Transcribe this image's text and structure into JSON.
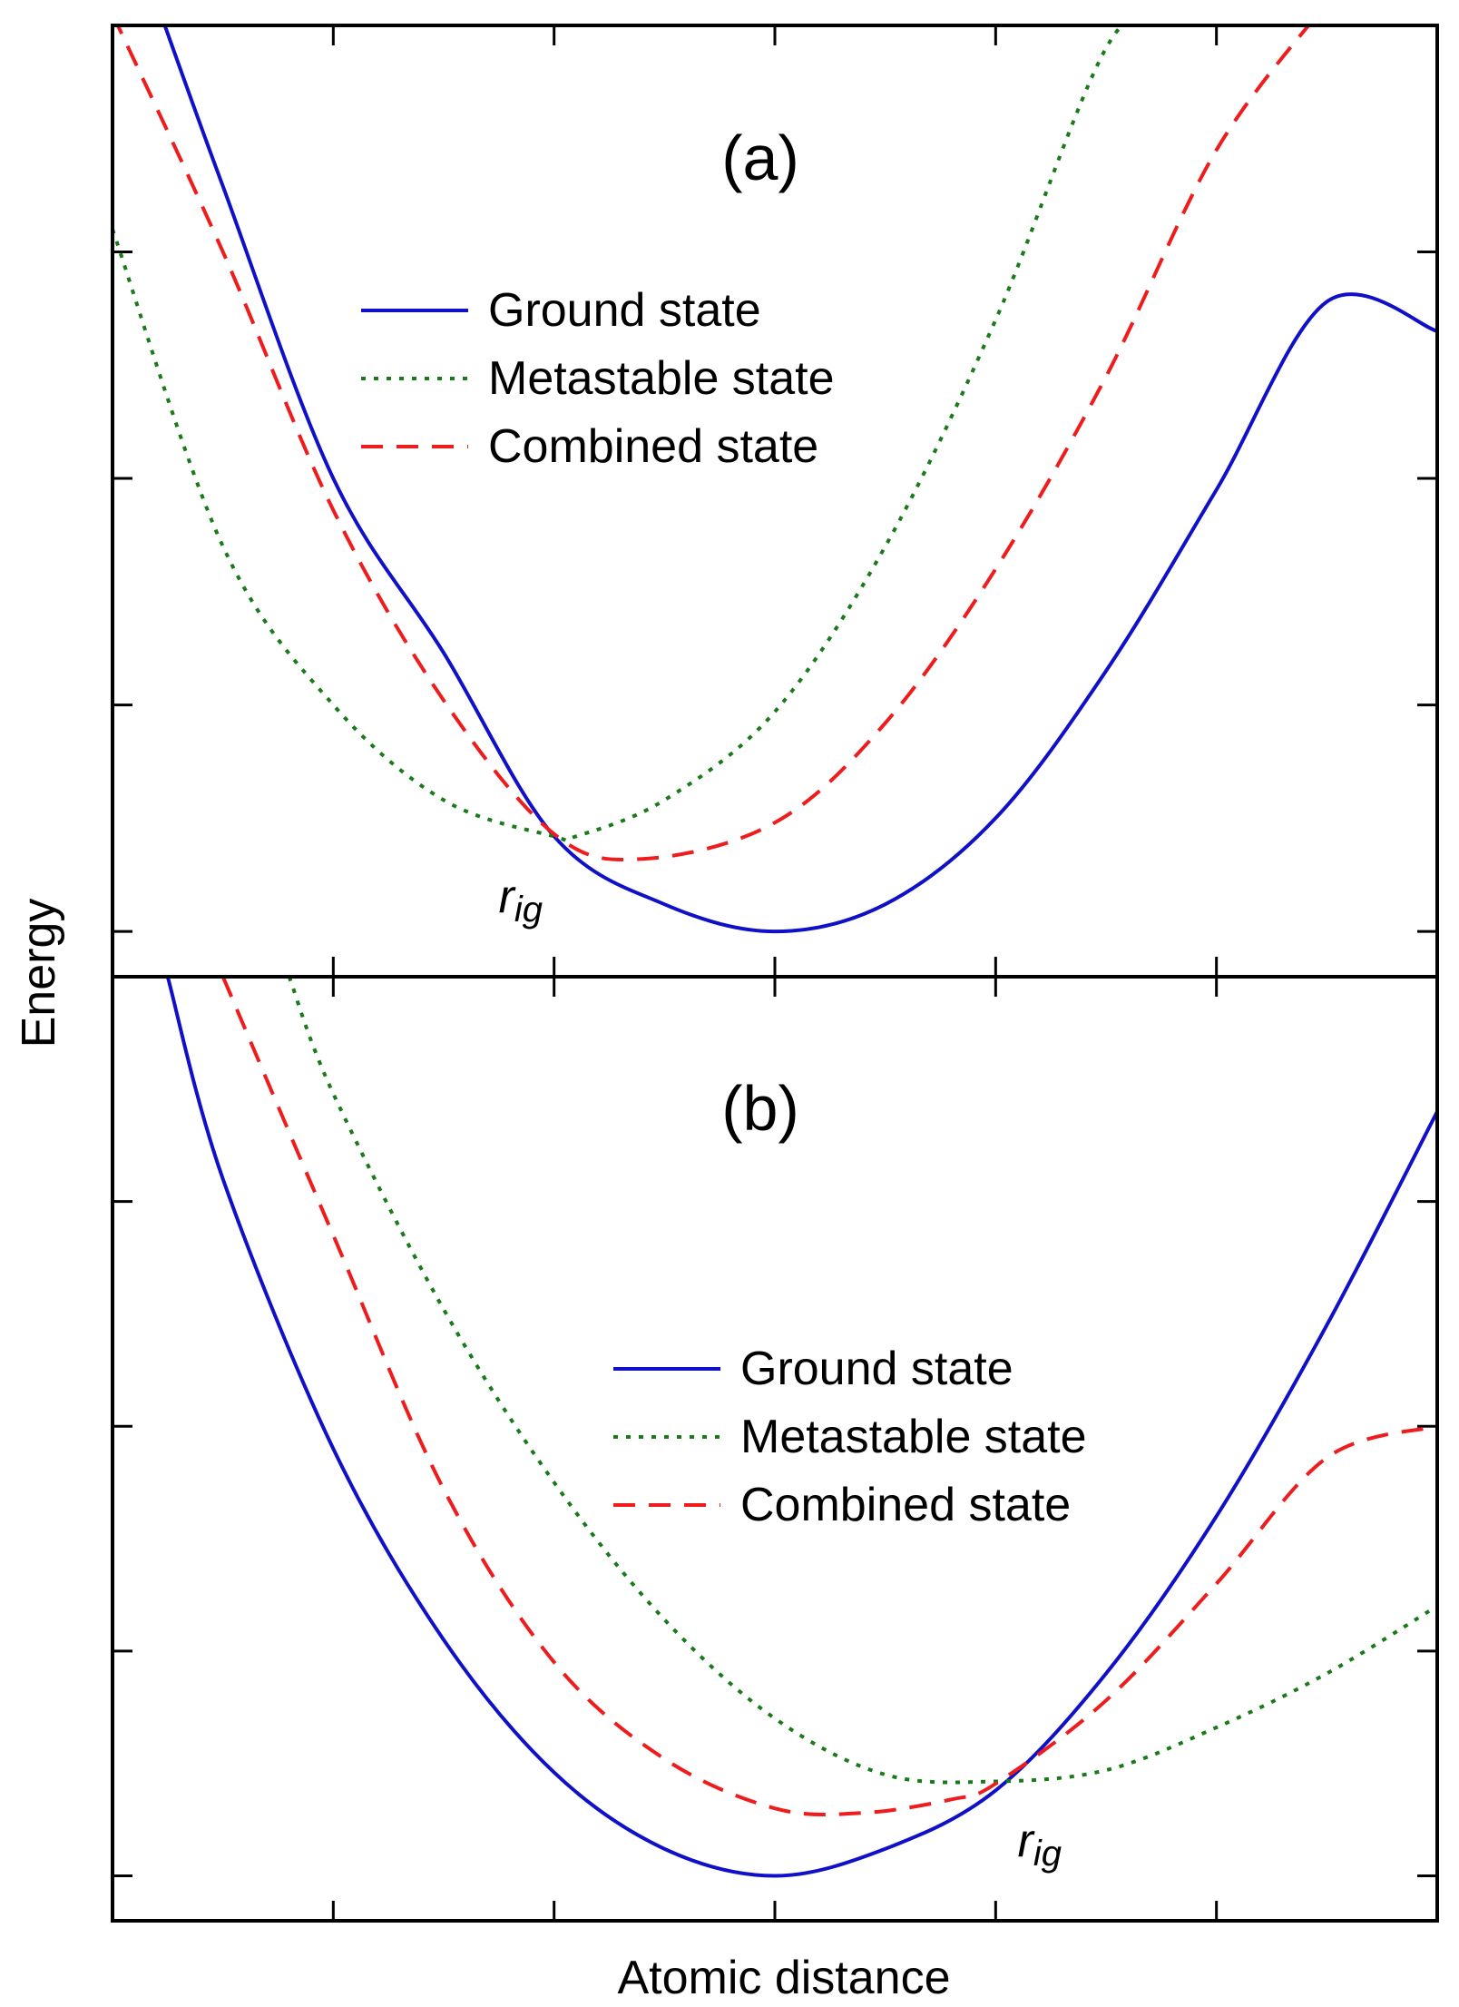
{
  "figure": {
    "xlabel": "Atomic distance",
    "ylabel": "Energy"
  },
  "chart_data": [
    {
      "type": "line",
      "panel_label": "(a)",
      "xlabel": "Atomic distance",
      "ylabel": "Energy",
      "xlim": [
        0,
        6
      ],
      "ylim": [
        -0.2,
        4.0
      ],
      "xticks": [
        1,
        2,
        3,
        4,
        5
      ],
      "yticks": [
        0,
        1,
        2,
        3,
        4
      ],
      "show_tick_labels": false,
      "grid": false,
      "legend_position": "upper-center",
      "crossing_label": {
        "base": "r",
        "sub": "ig",
        "x": 2.0,
        "y": 0.35
      },
      "series": [
        {
          "name": "Ground state",
          "color": "#1010c8",
          "style": "solid",
          "x": [
            0.2,
            0.5,
            1.0,
            1.5,
            2.0,
            2.5,
            3.0,
            3.5,
            4.0,
            4.5,
            5.0,
            5.5,
            6.0
          ],
          "y": [
            4.1,
            3.29,
            2.0,
            1.23,
            0.42,
            0.12,
            0.0,
            0.12,
            0.5,
            1.15,
            1.95,
            2.78,
            2.65
          ]
        },
        {
          "name": "Metastable state",
          "color": "#1a7a1a",
          "style": "dotted",
          "x": [
            0.0,
            0.5,
            1.0,
            1.5,
            2.0,
            2.1,
            2.5,
            3.0,
            3.5,
            4.0,
            4.5,
            4.8
          ],
          "y": [
            3.1,
            1.7,
            1.0,
            0.58,
            0.42,
            0.42,
            0.58,
            0.97,
            1.7,
            2.7,
            3.9,
            4.1
          ]
        },
        {
          "name": "Combined state",
          "color": "#ee1c1c",
          "style": "dashed",
          "x": [
            0.0,
            0.5,
            1.0,
            1.5,
            2.0,
            2.4,
            3.0,
            3.5,
            4.0,
            4.5,
            5.0,
            5.5
          ],
          "y": [
            4.05,
            3.0,
            1.86,
            1.02,
            0.43,
            0.32,
            0.48,
            0.92,
            1.6,
            2.45,
            3.45,
            4.1
          ]
        }
      ]
    },
    {
      "type": "line",
      "panel_label": "(b)",
      "xlabel": "Atomic distance",
      "ylabel": "Energy",
      "xlim": [
        0,
        6
      ],
      "ylim": [
        -0.2,
        4.0
      ],
      "xticks": [
        1,
        2,
        3,
        4,
        5
      ],
      "yticks": [
        0,
        1,
        2,
        3,
        4
      ],
      "show_tick_labels": false,
      "grid": false,
      "legend_position": "middle-right",
      "crossing_label": {
        "base": "r",
        "sub": "ig",
        "x": 4.0,
        "y": 0.18
      },
      "series": [
        {
          "name": "Ground state",
          "color": "#1010c8",
          "style": "solid",
          "x": [
            0.25,
            0.5,
            1.0,
            1.5,
            2.0,
            2.5,
            3.0,
            3.5,
            4.0,
            4.5,
            5.0,
            5.5,
            6.0
          ],
          "y": [
            4.0,
            3.1,
            1.9,
            1.05,
            0.46,
            0.12,
            0.0,
            0.12,
            0.38,
            0.9,
            1.6,
            2.45,
            3.4
          ]
        },
        {
          "name": "Metastable state",
          "color": "#1a7a1a",
          "style": "dotted",
          "x": [
            0.8,
            1.0,
            1.5,
            2.0,
            2.5,
            3.0,
            3.5,
            4.0,
            4.5,
            5.0,
            5.5,
            6.0
          ],
          "y": [
            4.0,
            3.48,
            2.52,
            1.75,
            1.14,
            0.7,
            0.45,
            0.42,
            0.47,
            0.66,
            0.9,
            1.2
          ]
        },
        {
          "name": "Combined state",
          "color": "#ee1c1c",
          "style": "dashed",
          "x": [
            0.5,
            1.0,
            1.5,
            2.0,
            2.5,
            3.0,
            3.4,
            3.8,
            4.0,
            4.5,
            5.0,
            5.5,
            6.0
          ],
          "y": [
            4.0,
            2.85,
            1.72,
            0.95,
            0.52,
            0.3,
            0.28,
            0.34,
            0.41,
            0.78,
            1.3,
            1.86,
            2.0
          ]
        }
      ]
    }
  ]
}
